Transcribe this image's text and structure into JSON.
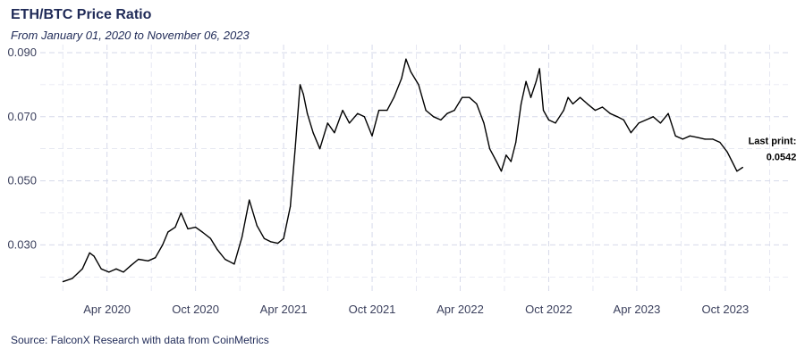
{
  "header": {
    "title": "ETH/BTC Price Ratio",
    "subtitle": "From January 01, 2020 to November 06, 2023"
  },
  "footer": {
    "caption": "Source: FalconX Research with data from CoinMetrics"
  },
  "colors": {
    "line": "#000000",
    "grid": "#d6d9ea",
    "text": "#1f2a57"
  },
  "chart_data": {
    "type": "line",
    "title": "ETH/BTC Price Ratio",
    "subtitle": "From January 01, 2020 to November 06, 2023",
    "xlabel": "",
    "ylabel": "",
    "xlim": [
      "2019-11-15",
      "2024-02-15"
    ],
    "ylim": [
      0.0145,
      0.0925
    ],
    "x_ticks": [
      {
        "date": "2020-04-01",
        "label": "Apr 2020"
      },
      {
        "date": "2020-10-01",
        "label": "Oct 2020"
      },
      {
        "date": "2021-04-01",
        "label": "Apr 2021"
      },
      {
        "date": "2021-10-01",
        "label": "Oct 2021"
      },
      {
        "date": "2022-04-01",
        "label": "Apr 2022"
      },
      {
        "date": "2022-10-01",
        "label": "Oct 2022"
      },
      {
        "date": "2023-04-01",
        "label": "Apr 2023"
      },
      {
        "date": "2023-10-01",
        "label": "Oct 2023"
      }
    ],
    "y_ticks": [
      {
        "value": 0.03,
        "label": "0.030"
      },
      {
        "value": 0.05,
        "label": "0.050"
      },
      {
        "value": 0.07,
        "label": "0.070"
      },
      {
        "value": 0.09,
        "label": "0.090"
      }
    ],
    "grid": true,
    "legend": "none",
    "series": [
      {
        "x": [
          "2020-01-01",
          "2020-01-20",
          "2020-02-10",
          "2020-02-25",
          "2020-03-05",
          "2020-03-20",
          "2020-04-05",
          "2020-04-20",
          "2020-05-05",
          "2020-05-20",
          "2020-06-05",
          "2020-06-25",
          "2020-07-10",
          "2020-07-25",
          "2020-08-05",
          "2020-08-20",
          "2020-09-01",
          "2020-09-15",
          "2020-10-01",
          "2020-10-15",
          "2020-11-01",
          "2020-11-15",
          "2020-12-01",
          "2020-12-20",
          "2021-01-05",
          "2021-01-20",
          "2021-02-05",
          "2021-02-20",
          "2021-03-05",
          "2021-03-20",
          "2021-04-01",
          "2021-04-15",
          "2021-04-25",
          "2021-05-05",
          "2021-05-12",
          "2021-05-20",
          "2021-06-01",
          "2021-06-15",
          "2021-07-01",
          "2021-07-15",
          "2021-08-01",
          "2021-08-15",
          "2021-09-01",
          "2021-09-15",
          "2021-10-01",
          "2021-10-15",
          "2021-11-01",
          "2021-11-15",
          "2021-12-01",
          "2021-12-10",
          "2021-12-20",
          "2022-01-05",
          "2022-01-20",
          "2022-02-05",
          "2022-02-20",
          "2022-03-05",
          "2022-03-20",
          "2022-04-05",
          "2022-04-20",
          "2022-05-05",
          "2022-05-20",
          "2022-06-01",
          "2022-06-15",
          "2022-06-25",
          "2022-07-05",
          "2022-07-15",
          "2022-07-25",
          "2022-08-05",
          "2022-08-15",
          "2022-08-25",
          "2022-09-05",
          "2022-09-12",
          "2022-09-20",
          "2022-10-01",
          "2022-10-15",
          "2022-11-01",
          "2022-11-10",
          "2022-11-20",
          "2022-12-05",
          "2022-12-20",
          "2023-01-05",
          "2023-01-20",
          "2023-02-05",
          "2023-02-20",
          "2023-03-05",
          "2023-03-20",
          "2023-04-05",
          "2023-04-20",
          "2023-05-05",
          "2023-05-20",
          "2023-06-05",
          "2023-06-20",
          "2023-07-05",
          "2023-07-20",
          "2023-08-05",
          "2023-08-20",
          "2023-09-05",
          "2023-09-20",
          "2023-10-05",
          "2023-10-15",
          "2023-10-25",
          "2023-11-06"
        ],
        "y": [
          0.0185,
          0.0195,
          0.0225,
          0.0275,
          0.0265,
          0.0225,
          0.0215,
          0.0225,
          0.0215,
          0.0235,
          0.0255,
          0.025,
          0.026,
          0.03,
          0.034,
          0.0355,
          0.04,
          0.035,
          0.0355,
          0.034,
          0.032,
          0.0285,
          0.0255,
          0.024,
          0.0325,
          0.044,
          0.036,
          0.032,
          0.031,
          0.0305,
          0.032,
          0.042,
          0.06,
          0.08,
          0.077,
          0.071,
          0.065,
          0.06,
          0.068,
          0.065,
          0.072,
          0.068,
          0.071,
          0.07,
          0.064,
          0.072,
          0.072,
          0.076,
          0.082,
          0.088,
          0.084,
          0.08,
          0.072,
          0.07,
          0.069,
          0.071,
          0.072,
          0.076,
          0.076,
          0.074,
          0.068,
          0.06,
          0.056,
          0.053,
          0.058,
          0.056,
          0.062,
          0.074,
          0.081,
          0.076,
          0.081,
          0.085,
          0.072,
          0.069,
          0.068,
          0.072,
          0.076,
          0.074,
          0.076,
          0.074,
          0.072,
          0.073,
          0.071,
          0.07,
          0.069,
          0.065,
          0.068,
          0.069,
          0.07,
          0.068,
          0.071,
          0.064,
          0.063,
          0.064,
          0.0635,
          0.063,
          0.063,
          0.062,
          0.059,
          0.056,
          0.053,
          0.0542
        ]
      }
    ],
    "annotations": [
      {
        "x": "2023-11-06",
        "y": 0.0542,
        "lines": [
          "Last print:",
          "0.0542"
        ]
      }
    ]
  }
}
